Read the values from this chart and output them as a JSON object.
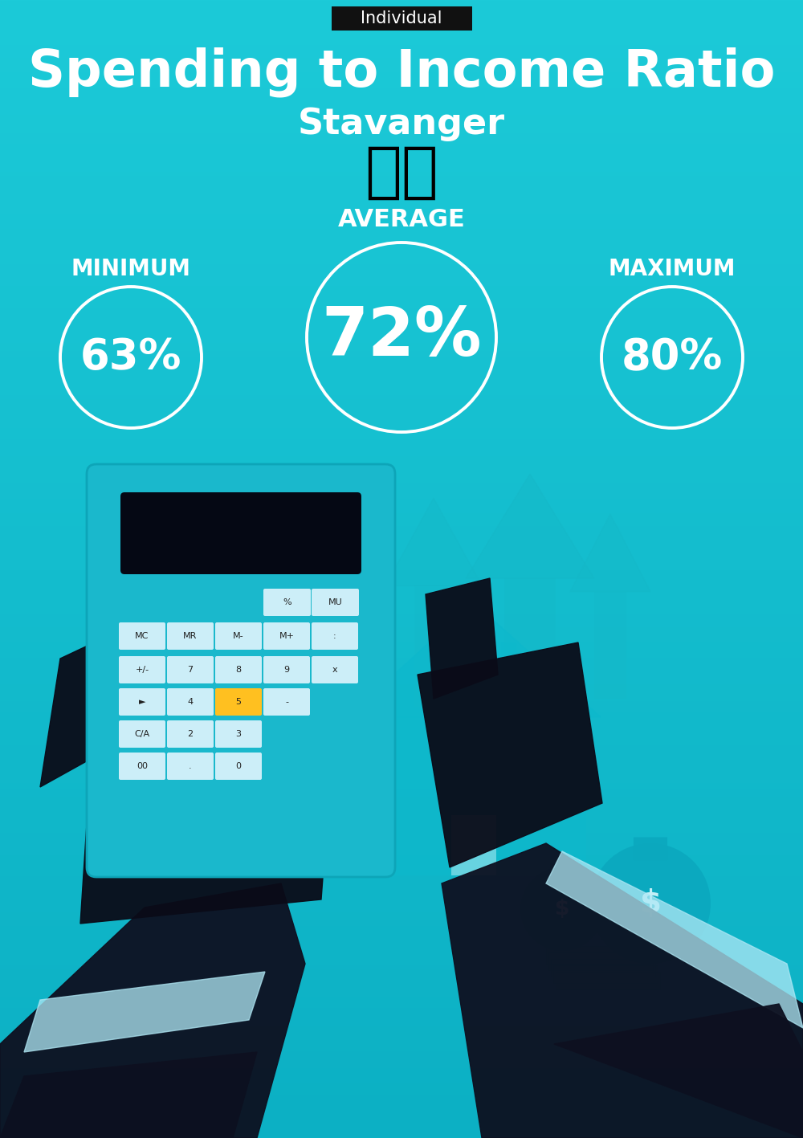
{
  "title": "Spending to Income Ratio",
  "subtitle": "Stavanger",
  "tag_label": "Individual",
  "tag_bg": "#111111",
  "tag_text_color": "#ffffff",
  "bg_top": "#1ccad8",
  "bg_bottom": "#0cb0c4",
  "title_color": "#ffffff",
  "subtitle_color": "#ffffff",
  "label_color": "#ffffff",
  "value_color": "#ffffff",
  "circle_color": "#ffffff",
  "min_label": "MINIMUM",
  "avg_label": "AVERAGE",
  "max_label": "MAXIMUM",
  "min_value": "63%",
  "avg_value": "72%",
  "max_value": "80%",
  "flag": "🇳🇴",
  "title_fs": 46,
  "subtitle_fs": 32,
  "tag_fs": 15,
  "min_max_label_fs": 20,
  "avg_label_fs": 22,
  "min_max_val_fs": 38,
  "avg_val_fs": 60,
  "flag_fs": 55,
  "fig_w": 10.0,
  "fig_h": 14.17,
  "dpi": 100
}
